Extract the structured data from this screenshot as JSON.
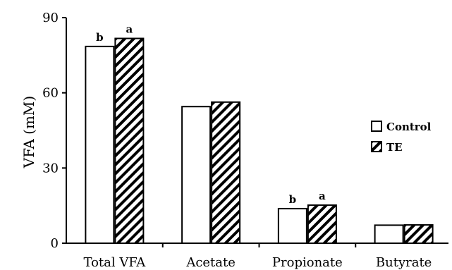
{
  "chart_data": {
    "type": "bar",
    "title": "",
    "xlabel": "",
    "ylabel": "VFA (mM)",
    "ylim": [
      0,
      90
    ],
    "yticks": [
      0,
      30,
      60,
      90
    ],
    "categories": [
      "Total VFA",
      "Acetate",
      "Propionate",
      "Butyrate"
    ],
    "series": [
      {
        "name": "Control",
        "pattern": "open",
        "values": [
          78.5,
          54.5,
          13.8,
          7.2
        ],
        "labels": [
          "b",
          "",
          "b",
          ""
        ]
      },
      {
        "name": "TE",
        "pattern": "hatched",
        "values": [
          81.7,
          56.3,
          15.2,
          7.3
        ],
        "labels": [
          "a",
          "",
          "a",
          ""
        ]
      }
    ],
    "legend_position": "right",
    "grid": false,
    "colors": {
      "bar_fill": "#ffffff",
      "bar_stroke": "#000000",
      "hatch": "#000000"
    }
  }
}
